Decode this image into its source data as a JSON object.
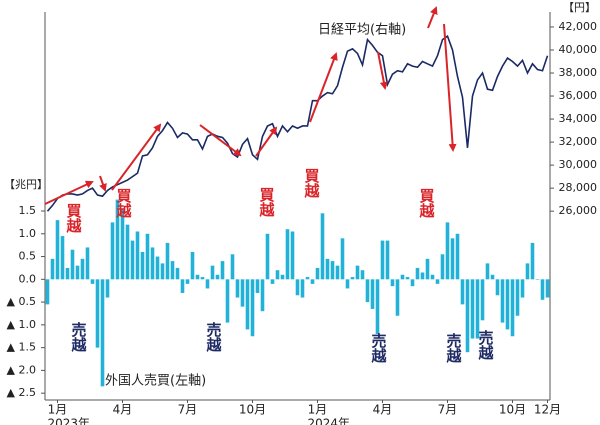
{
  "chart_data": {
    "type": "combo",
    "y_unit": "【兆円】",
    "y2_unit": "【円】",
    "categories": [
      null,
      null,
      "1月",
      null,
      null,
      null,
      null,
      null,
      null,
      null,
      null,
      null,
      null,
      null,
      null,
      "4月",
      null,
      null,
      null,
      null,
      null,
      null,
      null,
      null,
      null,
      null,
      null,
      null,
      "7月",
      null,
      null,
      null,
      null,
      null,
      null,
      null,
      null,
      null,
      null,
      null,
      null,
      "10月",
      null,
      null,
      null,
      null,
      null,
      null,
      null,
      null,
      null,
      null,
      null,
      null,
      "1月",
      null,
      null,
      null,
      null,
      null,
      null,
      null,
      null,
      null,
      null,
      null,
      null,
      "4月",
      null,
      null,
      null,
      null,
      null,
      null,
      null,
      null,
      null,
      null,
      null,
      null,
      "7月",
      null,
      null,
      null,
      null,
      null,
      null,
      null,
      null,
      null,
      null,
      null,
      null,
      "10月",
      null,
      null,
      null,
      null,
      null,
      null,
      "12月"
    ],
    "year_labels": [
      null,
      null,
      "2023年",
      null,
      null,
      null,
      null,
      null,
      null,
      null,
      null,
      null,
      null,
      null,
      null,
      null,
      null,
      null,
      null,
      null,
      null,
      null,
      null,
      null,
      null,
      null,
      null,
      null,
      null,
      null,
      null,
      null,
      null,
      null,
      null,
      null,
      null,
      null,
      null,
      null,
      null,
      null,
      null,
      null,
      null,
      null,
      null,
      null,
      null,
      null,
      null,
      null,
      null,
      null,
      "2024年",
      null,
      null,
      null,
      null,
      null,
      null,
      null,
      null,
      null,
      null,
      null,
      null,
      null,
      null,
      null,
      null,
      null,
      null,
      null,
      null,
      null,
      null,
      null,
      null,
      null,
      null,
      null,
      null,
      null,
      null,
      null,
      null,
      null,
      null,
      null,
      null,
      null,
      null,
      null,
      null,
      null,
      null,
      null,
      null,
      null,
      null
    ],
    "series": [
      {
        "name": "外国人売買(左軸)",
        "type": "bar",
        "color": "#22b2d8",
        "values": [
          -0.55,
          0.45,
          1.3,
          0.95,
          0.25,
          0.65,
          0.3,
          0.45,
          0.7,
          -0.1,
          -1.5,
          -2.35,
          -0.4,
          1.25,
          1.75,
          1.55,
          1.2,
          0.85,
          1.05,
          0.6,
          1.0,
          0.7,
          0.5,
          0.35,
          0.8,
          0.4,
          0.25,
          -0.3,
          -0.1,
          0.6,
          0.1,
          0.05,
          -0.2,
          0.3,
          0.1,
          0.4,
          -0.95,
          0.55,
          -0.4,
          -0.6,
          -1.1,
          -1.25,
          -0.3,
          -0.7,
          1.0,
          -0.1,
          0.2,
          0.1,
          1.1,
          1.05,
          -0.35,
          -0.4,
          0.05,
          -0.1,
          0.25,
          1.45,
          0.45,
          0.4,
          0.3,
          0.9,
          -0.2,
          0.05,
          0.3,
          0.2,
          -0.5,
          -0.65,
          -1.2,
          0.85,
          0.85,
          -0.15,
          -0.8,
          0.1,
          0.05,
          -0.15,
          0.25,
          0.15,
          0.45,
          0.1,
          -0.1,
          0.55,
          1.25,
          0.9,
          1.0,
          -0.55,
          -1.6,
          -1.3,
          -1.3,
          -0.9,
          0.35,
          0.1,
          -0.35,
          -0.95,
          -1.1,
          -1.25,
          -0.8,
          -0.4,
          0.35,
          0.8,
          0.0,
          -0.45,
          -0.4
        ]
      },
      {
        "name": "日経平均(右軸)",
        "type": "line",
        "axis": "y2",
        "color": "#1a2a66",
        "values": [
          26000,
          26500,
          27100,
          27400,
          27500,
          27500,
          27400,
          27500,
          27800,
          28000,
          27400,
          27300,
          27800,
          28100,
          28300,
          28500,
          28700,
          29000,
          29300,
          30800,
          30900,
          31500,
          32500,
          33000,
          33700,
          33200,
          32400,
          32800,
          32700,
          32200,
          32200,
          31400,
          32500,
          32700,
          32500,
          32400,
          31900,
          31000,
          30700,
          31800,
          32300,
          30900,
          30500,
          32500,
          33400,
          33600,
          32500,
          33400,
          32900,
          33400,
          33200,
          33400,
          33400,
          35600,
          35600,
          36000,
          36300,
          36200,
          36900,
          38500,
          39900,
          40100,
          39700,
          38700,
          40900,
          40400,
          39800,
          39500,
          37000,
          37900,
          38200,
          38100,
          38800,
          38600,
          38500,
          39000,
          38800,
          38600,
          39500,
          40900,
          41200,
          40000,
          37700,
          35900,
          31500,
          36000,
          37400,
          38000,
          36600,
          36500,
          37700,
          38600,
          39300,
          39000,
          38600,
          39100,
          38000,
          38800,
          38300,
          38200,
          39500
        ]
      }
    ],
    "ylim": [
      -2.65,
      5.87
    ],
    "yticks": [
      1.5,
      {
        "value": 1,
        "label": "1.0"
      },
      0.5,
      {
        "value": 0,
        "label": "0.0"
      },
      {
        "value": -0.5,
        "label": "▲ 0.5"
      },
      {
        "value": -1,
        "label": "▲ 1.0"
      },
      {
        "value": -1.5,
        "label": "▲ 1.5"
      },
      {
        "value": -2,
        "label": "▲ 2.0"
      },
      {
        "value": -2.5,
        "label": "▲ 2.5"
      }
    ],
    "y2lim": [
      9600,
      43300
    ],
    "y2ticks": [
      {
        "value": 26000,
        "label": "26,000"
      },
      {
        "value": 28000,
        "label": "28,000"
      },
      {
        "value": 30000,
        "label": "30,000"
      },
      {
        "value": 32000,
        "label": "32,000"
      },
      {
        "value": 34000,
        "label": "34,000"
      },
      {
        "value": 36000,
        "label": "36,000"
      },
      {
        "value": 38000,
        "label": "38,000"
      },
      {
        "value": 40000,
        "label": "40,000"
      },
      {
        "value": 42000,
        "label": "42,000"
      }
    ],
    "annotations": [
      "買越",
      "買越",
      "買越",
      "買越",
      "買越",
      "売越",
      "売越",
      "売越",
      "売越",
      "売越"
    ]
  }
}
